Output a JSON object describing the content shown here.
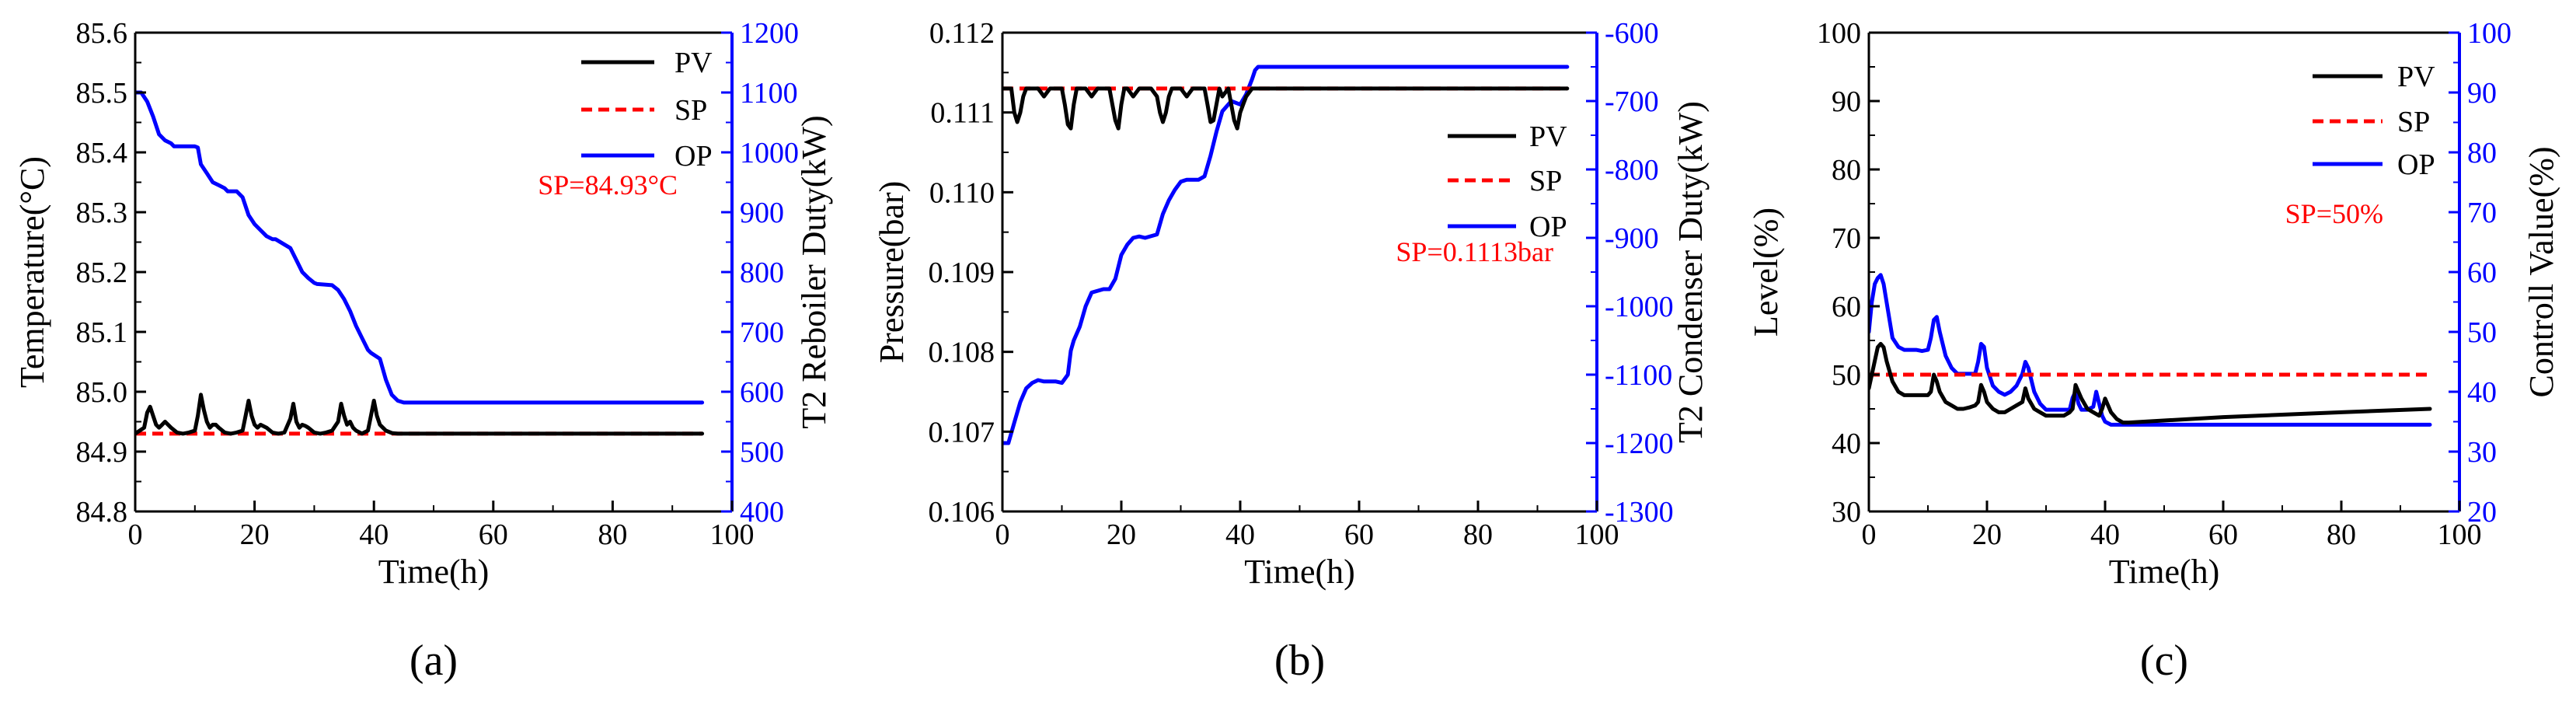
{
  "colors": {
    "pv": "#000000",
    "sp": "#ff0000",
    "op": "#0000ff",
    "axis": "#000000",
    "sp_note": "#ff0000"
  },
  "chart_data": [
    {
      "type": "line",
      "panel_label": "(a)",
      "xlabel": "Time(h)",
      "ylabel": "Temperature(°C)",
      "y2label": "T2 Reboiler Duty(kW)",
      "xlim": [
        0,
        100
      ],
      "xticks": [
        "0",
        "20",
        "40",
        "60",
        "80",
        "100"
      ],
      "ylim": [
        84.8,
        85.6
      ],
      "yticks": [
        "84.8",
        "84.9",
        "85.0",
        "85.1",
        "85.2",
        "85.3",
        "85.4",
        "85.5",
        "85.6"
      ],
      "y2lim": [
        400,
        1200
      ],
      "y2ticks": [
        "400",
        "500",
        "600",
        "700",
        "800",
        "900",
        "1000",
        "1100",
        "1200"
      ],
      "legend": [
        "PV",
        "SP",
        "OP"
      ],
      "legend_position": "top-right",
      "sp_note": "SP=84.93°C",
      "series": [
        {
          "name": "PV",
          "axis": "left",
          "x": [
            0,
            1.5,
            2,
            2.5,
            3,
            3.5,
            4,
            4.5,
            5,
            6,
            7,
            8,
            9,
            10,
            10.5,
            11,
            11.5,
            12,
            12.5,
            13,
            13.5,
            14,
            15,
            16,
            17,
            18,
            18.5,
            19,
            19.5,
            20,
            20.5,
            21,
            22,
            23,
            24,
            25,
            26,
            26.5,
            27,
            27.5,
            28,
            28.5,
            29,
            30,
            31,
            32,
            33,
            34,
            34.5,
            35,
            35.5,
            36,
            36.5,
            37,
            38,
            39,
            39.5,
            40,
            40.5,
            41,
            41.5,
            42,
            43,
            44,
            95
          ],
          "y": [
            84.93,
            84.94,
            84.965,
            84.975,
            84.96,
            84.945,
            84.94,
            84.945,
            84.95,
            84.94,
            84.932,
            84.93,
            84.932,
            84.935,
            84.96,
            84.995,
            84.97,
            84.95,
            84.94,
            84.945,
            84.945,
            84.94,
            84.932,
            84.93,
            84.932,
            84.935,
            84.96,
            84.985,
            84.96,
            84.945,
            84.94,
            84.945,
            84.94,
            84.932,
            84.93,
            84.932,
            84.955,
            84.98,
            84.95,
            84.94,
            84.945,
            84.943,
            84.94,
            84.932,
            84.93,
            84.932,
            84.935,
            84.95,
            84.98,
            84.96,
            84.945,
            84.95,
            84.94,
            84.935,
            84.93,
            84.935,
            84.96,
            84.985,
            84.96,
            84.945,
            84.94,
            84.935,
            84.931,
            84.93,
            84.93
          ]
        },
        {
          "name": "SP",
          "axis": "left",
          "x": [
            0,
            95
          ],
          "y": [
            84.93,
            84.93
          ]
        },
        {
          "name": "OP",
          "axis": "right",
          "x": [
            0,
            1,
            2,
            3,
            4,
            5,
            6,
            6.5,
            10,
            10.5,
            11,
            12,
            13,
            14,
            15,
            15.5,
            17,
            18,
            19,
            20,
            21,
            22,
            23,
            23.5,
            26,
            27,
            28,
            29,
            30,
            30.5,
            33,
            34,
            35,
            36,
            37,
            38,
            39,
            39.5,
            41,
            42,
            43,
            44,
            45,
            95
          ],
          "y": [
            1100,
            1100,
            1085,
            1060,
            1030,
            1020,
            1015,
            1010,
            1010,
            1008,
            980,
            965,
            950,
            945,
            940,
            935,
            935,
            925,
            895,
            880,
            870,
            860,
            855,
            855,
            840,
            820,
            800,
            790,
            782,
            780,
            778,
            770,
            755,
            735,
            710,
            690,
            670,
            665,
            655,
            620,
            595,
            585,
            582,
            582
          ]
        }
      ]
    },
    {
      "type": "line",
      "panel_label": "(b)",
      "xlabel": "Time(h)",
      "ylabel": "Pressure(bar)",
      "y2label": "T2 Condenser Duty(kW)",
      "xlim": [
        0,
        100
      ],
      "xticks": [
        "0",
        "20",
        "40",
        "60",
        "80",
        "100"
      ],
      "ylim": [
        0.106,
        0.112
      ],
      "yticks": [
        "0.106",
        "0.107",
        "0.108",
        "0.109",
        "0.110",
        "0.111",
        "0.112"
      ],
      "y2lim": [
        -1300,
        -600
      ],
      "y2ticks": [
        "-1300",
        "-1200",
        "-1100",
        "-1000",
        "-900",
        "-800",
        "-700",
        "-600"
      ],
      "legend": [
        "PV",
        "SP",
        "OP"
      ],
      "legend_position": "center-right",
      "sp_note": "SP=0.1113bar",
      "series": [
        {
          "name": "PV",
          "axis": "left",
          "x": [
            0,
            1.5,
            2,
            2.5,
            3,
            3.5,
            4,
            5,
            6,
            7,
            8,
            9,
            10,
            10.5,
            11,
            11.5,
            12,
            12.5,
            13,
            14,
            15,
            16,
            17,
            18,
            18.5,
            19,
            19.5,
            20,
            20.5,
            21,
            22,
            23,
            24,
            25,
            26,
            26.5,
            27,
            27.5,
            28,
            28.5,
            29,
            30,
            31,
            32,
            33,
            34,
            34.5,
            35,
            35.5,
            36,
            36.5,
            37,
            38,
            38.5,
            39,
            39.5,
            40,
            40.5,
            41,
            42,
            43,
            95
          ],
          "y": [
            0.1113,
            0.1113,
            0.111,
            0.11088,
            0.111,
            0.1112,
            0.1113,
            0.1113,
            0.1113,
            0.1112,
            0.1113,
            0.1113,
            0.1113,
            0.1111,
            0.11085,
            0.1108,
            0.1111,
            0.1113,
            0.1113,
            0.1113,
            0.1112,
            0.1113,
            0.1113,
            0.1113,
            0.1111,
            0.1109,
            0.1108,
            0.1111,
            0.1113,
            0.1113,
            0.1112,
            0.1113,
            0.1113,
            0.1113,
            0.1112,
            0.111,
            0.11088,
            0.111,
            0.1112,
            0.1113,
            0.1113,
            0.1113,
            0.1112,
            0.1113,
            0.1113,
            0.1113,
            0.1111,
            0.11088,
            0.1109,
            0.1111,
            0.1113,
            0.1112,
            0.1113,
            0.1111,
            0.1109,
            0.1108,
            0.111,
            0.1111,
            0.1112,
            0.1113,
            0.1113,
            0.1113
          ]
        },
        {
          "name": "SP",
          "axis": "left",
          "x": [
            0,
            95
          ],
          "y": [
            0.1113,
            0.1113
          ]
        },
        {
          "name": "OP",
          "axis": "right",
          "x": [
            0,
            1,
            2,
            3,
            4,
            5,
            6,
            7,
            9,
            10,
            11,
            11.5,
            12,
            13,
            14,
            15,
            17,
            18,
            19,
            20,
            21,
            22,
            23,
            24,
            26,
            27,
            28,
            29,
            30,
            31,
            33,
            34,
            35,
            36,
            37,
            38,
            38.5,
            40,
            41,
            42,
            42.5,
            43,
            44,
            45,
            95
          ],
          "y": [
            -1200,
            -1200,
            -1170,
            -1140,
            -1120,
            -1112,
            -1108,
            -1110,
            -1110,
            -1112,
            -1100,
            -1065,
            -1050,
            -1030,
            -1000,
            -980,
            -975,
            -975,
            -960,
            -925,
            -910,
            -900,
            -898,
            -900,
            -895,
            -865,
            -845,
            -830,
            -818,
            -815,
            -815,
            -810,
            -780,
            -745,
            -715,
            -705,
            -700,
            -705,
            -690,
            -668,
            -655,
            -650,
            -650,
            -650,
            -650
          ]
        }
      ]
    },
    {
      "type": "line",
      "panel_label": "(c)",
      "xlabel": "Time(h)",
      "ylabel": "Level(%)",
      "y2label": "Controll Value(%)",
      "xlim": [
        0,
        100
      ],
      "xticks": [
        "0",
        "20",
        "40",
        "60",
        "80",
        "100"
      ],
      "ylim": [
        30,
        100
      ],
      "yticks": [
        "30",
        "40",
        "50",
        "60",
        "70",
        "80",
        "90",
        "100"
      ],
      "y2lim": [
        20,
        100
      ],
      "y2ticks": [
        "20",
        "30",
        "40",
        "50",
        "60",
        "70",
        "80",
        "90",
        "100"
      ],
      "legend": [
        "PV",
        "SP",
        "OP"
      ],
      "legend_position": "top-right",
      "sp_note": "SP=50%",
      "series": [
        {
          "name": "PV",
          "axis": "left",
          "x": [
            0,
            1,
            1.5,
            2,
            2.5,
            3,
            4,
            5,
            6,
            7,
            8,
            9,
            10,
            10.5,
            11,
            11.5,
            12,
            13,
            14,
            15,
            16,
            17,
            18,
            18.5,
            19,
            19.5,
            20,
            21,
            22,
            23,
            24,
            25,
            26,
            26.5,
            27,
            28,
            29,
            30,
            31,
            32,
            33,
            34,
            34.5,
            35,
            36,
            37,
            38,
            39,
            39.5,
            40,
            41,
            42,
            43,
            44,
            60,
            80,
            95
          ],
          "y": [
            48,
            52,
            54,
            54.5,
            54,
            52,
            49,
            47.5,
            47,
            47,
            47,
            47,
            47,
            47.5,
            50,
            49,
            47.5,
            46,
            45.5,
            45,
            45,
            45.2,
            45.5,
            46,
            48.5,
            47.5,
            46,
            45,
            44.5,
            44.5,
            45,
            45.5,
            46,
            48,
            46.5,
            45,
            44.5,
            44,
            44,
            44,
            44,
            44.5,
            45,
            48.5,
            46.5,
            45,
            44.5,
            44,
            45,
            46.5,
            44.5,
            43.5,
            43,
            43,
            43.8,
            44.5,
            45
          ]
        },
        {
          "name": "SP",
          "axis": "left",
          "x": [
            0,
            95
          ],
          "y": [
            50,
            50
          ]
        },
        {
          "name": "OP",
          "axis": "right",
          "x": [
            0,
            0.5,
            1,
            1.5,
            2,
            2.5,
            3,
            3.5,
            4,
            5,
            6,
            7,
            8,
            9,
            10,
            10.5,
            11,
            11.5,
            12,
            13,
            14,
            15,
            16,
            17,
            18,
            18.5,
            19,
            19.5,
            20,
            21,
            22,
            23,
            24,
            25,
            26,
            26.5,
            27,
            28,
            29,
            30,
            31,
            32,
            33,
            34,
            34.5,
            35,
            35.5,
            36,
            37,
            38,
            38.5,
            39,
            39.5,
            40,
            41,
            42,
            43,
            44,
            95
          ],
          "y": [
            50,
            55,
            58,
            59,
            59.5,
            58,
            55,
            52,
            49,
            47.5,
            47,
            47,
            47,
            46.8,
            47,
            49,
            52,
            52.5,
            50,
            46,
            44,
            43,
            43,
            43,
            43,
            45,
            48,
            47.5,
            44,
            41,
            40,
            39.5,
            40,
            41,
            43,
            45,
            44,
            40,
            38,
            37,
            37,
            37,
            37,
            37,
            39,
            40,
            38,
            37,
            37,
            37.5,
            40,
            38,
            36,
            35,
            34.5,
            34.5,
            34.5,
            34.5,
            34.5
          ]
        }
      ]
    }
  ]
}
